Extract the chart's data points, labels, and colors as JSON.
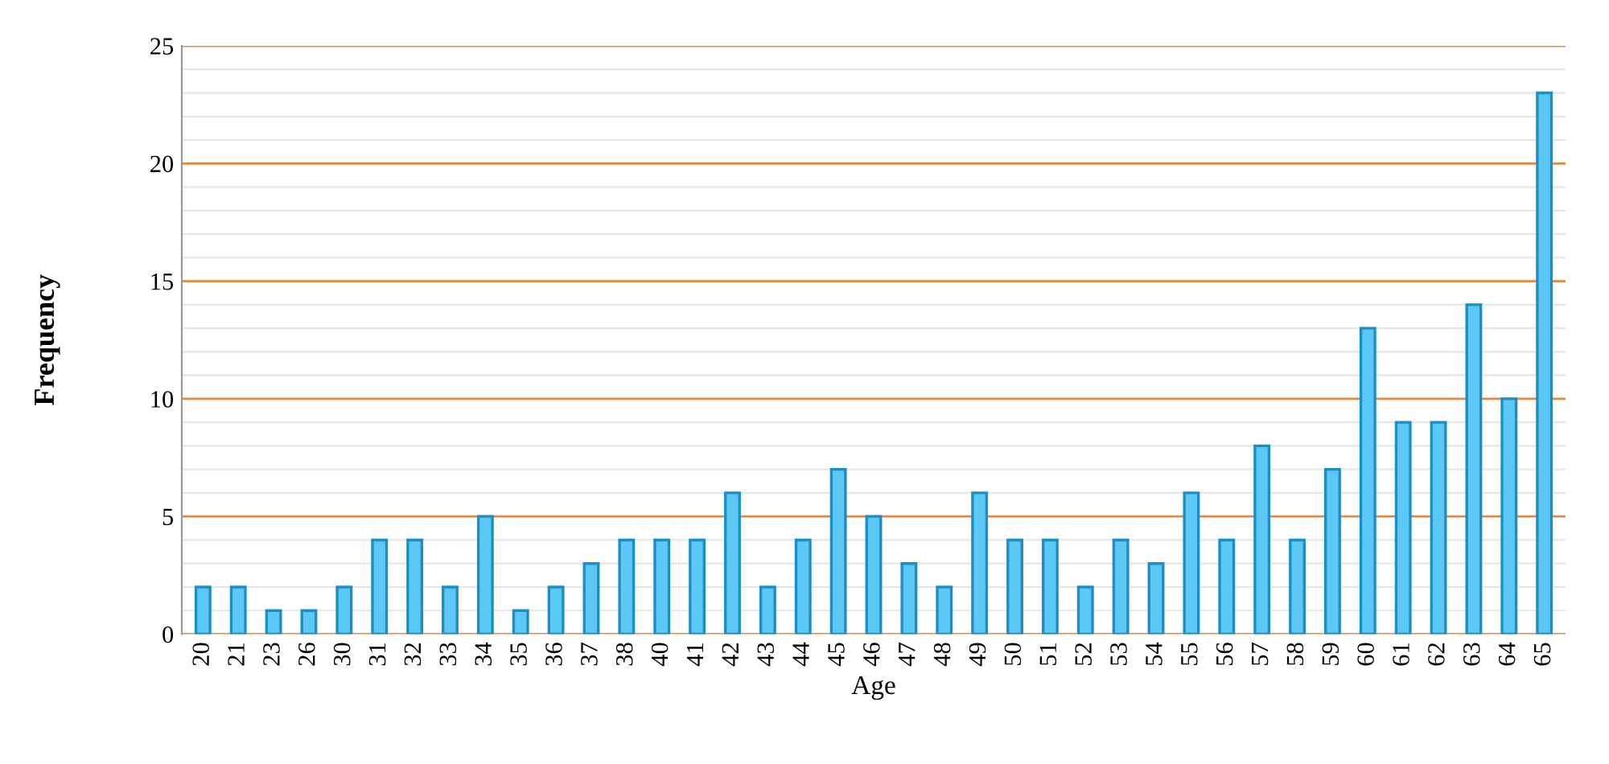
{
  "chart_data": {
    "type": "bar",
    "xlabel": "Age",
    "ylabel": "Frequency",
    "categories": [
      "20",
      "21",
      "23",
      "26",
      "30",
      "31",
      "32",
      "33",
      "34",
      "35",
      "36",
      "37",
      "38",
      "40",
      "41",
      "42",
      "43",
      "44",
      "45",
      "46",
      "47",
      "48",
      "49",
      "50",
      "51",
      "52",
      "53",
      "54",
      "55",
      "56",
      "57",
      "58",
      "59",
      "60",
      "61",
      "62",
      "63",
      "64",
      "65"
    ],
    "values": [
      2,
      2,
      1,
      1,
      2,
      4,
      4,
      2,
      5,
      1,
      2,
      3,
      4,
      4,
      4,
      6,
      2,
      4,
      7,
      5,
      3,
      2,
      6,
      4,
      4,
      2,
      4,
      3,
      6,
      4,
      8,
      4,
      7,
      13,
      9,
      9,
      14,
      10,
      23
    ],
    "color": "#5bc8f5",
    "ylim": [
      0,
      25
    ],
    "yticks": [
      0,
      {
        "value": 1,
        "label": null
      },
      {
        "value": 2,
        "label": null
      },
      {
        "value": 3,
        "label": null
      },
      {
        "value": 4,
        "label": null
      },
      5,
      {
        "value": 6,
        "label": null
      },
      {
        "value": 7,
        "label": null
      },
      {
        "value": 8,
        "label": null
      },
      {
        "value": 9,
        "label": null
      },
      10,
      {
        "value": 11,
        "label": null
      },
      {
        "value": 12,
        "label": null
      },
      {
        "value": 13,
        "label": null
      },
      {
        "value": 14,
        "label": null
      },
      15,
      {
        "value": 16,
        "label": null
      },
      {
        "value": 17,
        "label": null
      },
      {
        "value": 18,
        "label": null
      },
      {
        "value": 19,
        "label": null
      },
      20,
      {
        "value": 21,
        "label": null
      },
      {
        "value": 22,
        "label": null
      },
      {
        "value": 23,
        "label": null
      },
      {
        "value": 24,
        "label": null
      },
      25
    ],
    "grid": "y"
  }
}
